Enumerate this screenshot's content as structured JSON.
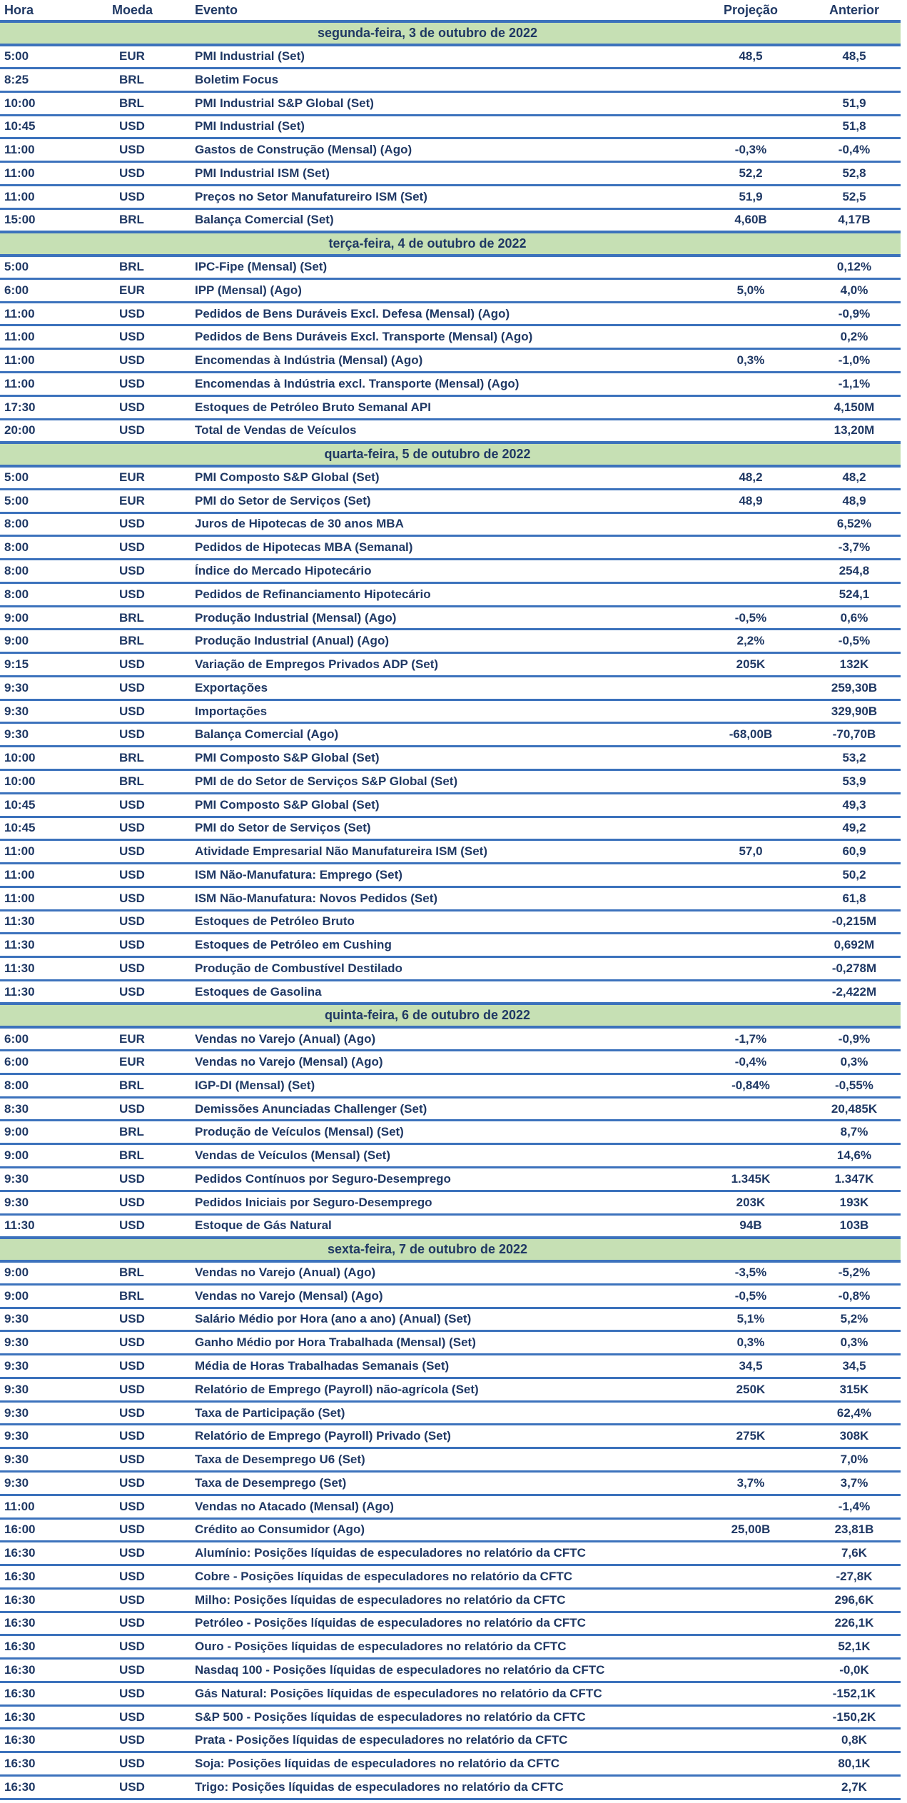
{
  "colors": {
    "day_header_background": "#c6e0b4",
    "row_border_blue": "#3c72bc",
    "text_navy": "#1f3864"
  },
  "table": {
    "columns": [
      {
        "key": "hora",
        "label": "Hora"
      },
      {
        "key": "moeda",
        "label": "Moeda"
      },
      {
        "key": "evento",
        "label": "Evento"
      },
      {
        "key": "projecao",
        "label": "Projeção"
      },
      {
        "key": "anterior",
        "label": "Anterior"
      }
    ],
    "days": [
      {
        "header": "segunda-feira, 3 de outubro de 2022",
        "rows": [
          {
            "hora": "5:00",
            "moeda": "EUR",
            "evento": "PMI Industrial (Set)",
            "projecao": "48,5",
            "anterior": "48,5"
          },
          {
            "hora": "8:25",
            "moeda": "BRL",
            "evento": "Boletim Focus",
            "projecao": "",
            "anterior": ""
          },
          {
            "hora": "10:00",
            "moeda": "BRL",
            "evento": "PMI Industrial S&P Global (Set)",
            "projecao": "",
            "anterior": "51,9"
          },
          {
            "hora": "10:45",
            "moeda": "USD",
            "evento": "PMI Industrial (Set)",
            "projecao": "",
            "anterior": "51,8"
          },
          {
            "hora": "11:00",
            "moeda": "USD",
            "evento": "Gastos de Construção (Mensal) (Ago)",
            "projecao": "-0,3%",
            "anterior": "-0,4%"
          },
          {
            "hora": "11:00",
            "moeda": "USD",
            "evento": "PMI Industrial ISM (Set)",
            "projecao": "52,2",
            "anterior": "52,8"
          },
          {
            "hora": "11:00",
            "moeda": "USD",
            "evento": "Preços no Setor Manufatureiro ISM (Set)",
            "projecao": "51,9",
            "anterior": "52,5"
          },
          {
            "hora": "15:00",
            "moeda": "BRL",
            "evento": "Balança Comercial (Set)",
            "projecao": "4,60B",
            "anterior": "4,17B"
          }
        ]
      },
      {
        "header": "terça-feira, 4 de outubro de 2022",
        "rows": [
          {
            "hora": "5:00",
            "moeda": "BRL",
            "evento": "IPC-Fipe (Mensal) (Set)",
            "projecao": "",
            "anterior": "0,12%"
          },
          {
            "hora": "6:00",
            "moeda": "EUR",
            "evento": "IPP (Mensal) (Ago)",
            "projecao": "5,0%",
            "anterior": "4,0%"
          },
          {
            "hora": "11:00",
            "moeda": "USD",
            "evento": "Pedidos de Bens Duráveis Excl. Defesa (Mensal) (Ago)",
            "projecao": "",
            "anterior": "-0,9%"
          },
          {
            "hora": "11:00",
            "moeda": "USD",
            "evento": "Pedidos de Bens Duráveis Excl. Transporte (Mensal) (Ago)",
            "projecao": "",
            "anterior": "0,2%"
          },
          {
            "hora": "11:00",
            "moeda": "USD",
            "evento": "Encomendas à Indústria (Mensal) (Ago)",
            "projecao": "0,3%",
            "anterior": "-1,0%"
          },
          {
            "hora": "11:00",
            "moeda": "USD",
            "evento": "Encomendas à Indústria excl. Transporte (Mensal) (Ago)",
            "projecao": "",
            "anterior": "-1,1%"
          },
          {
            "hora": "17:30",
            "moeda": "USD",
            "evento": "Estoques de Petróleo Bruto Semanal API",
            "projecao": "",
            "anterior": "4,150M"
          },
          {
            "hora": "20:00",
            "moeda": "USD",
            "evento": "Total de Vendas de Veículos",
            "projecao": "",
            "anterior": "13,20M"
          }
        ]
      },
      {
        "header": "quarta-feira, 5 de outubro de 2022",
        "rows": [
          {
            "hora": "5:00",
            "moeda": "EUR",
            "evento": "PMI Composto S&P Global (Set)",
            "projecao": "48,2",
            "anterior": "48,2"
          },
          {
            "hora": "5:00",
            "moeda": "EUR",
            "evento": "PMI do Setor de Serviços (Set)",
            "projecao": "48,9",
            "anterior": "48,9"
          },
          {
            "hora": "8:00",
            "moeda": "USD",
            "evento": "Juros de Hipotecas de 30 anos MBA",
            "projecao": "",
            "anterior": "6,52%"
          },
          {
            "hora": "8:00",
            "moeda": "USD",
            "evento": "Pedidos de Hipotecas MBA (Semanal)",
            "projecao": "",
            "anterior": "-3,7%"
          },
          {
            "hora": "8:00",
            "moeda": "USD",
            "evento": "Índice do Mercado Hipotecário",
            "projecao": "",
            "anterior": "254,8"
          },
          {
            "hora": "8:00",
            "moeda": "USD",
            "evento": "Pedidos de Refinanciamento Hipotecário",
            "projecao": "",
            "anterior": "524,1"
          },
          {
            "hora": "9:00",
            "moeda": "BRL",
            "evento": "Produção Industrial (Mensal) (Ago)",
            "projecao": "-0,5%",
            "anterior": "0,6%"
          },
          {
            "hora": "9:00",
            "moeda": "BRL",
            "evento": "Produção Industrial (Anual) (Ago)",
            "projecao": "2,2%",
            "anterior": "-0,5%"
          },
          {
            "hora": "9:15",
            "moeda": "USD",
            "evento": "Variação de Empregos Privados ADP (Set)",
            "projecao": "205K",
            "anterior": "132K"
          },
          {
            "hora": "9:30",
            "moeda": "USD",
            "evento": "Exportações",
            "projecao": "",
            "anterior": "259,30B"
          },
          {
            "hora": "9:30",
            "moeda": "USD",
            "evento": "Importações",
            "projecao": "",
            "anterior": "329,90B"
          },
          {
            "hora": "9:30",
            "moeda": "USD",
            "evento": "Balança Comercial (Ago)",
            "projecao": "-68,00B",
            "anterior": "-70,70B"
          },
          {
            "hora": "10:00",
            "moeda": "BRL",
            "evento": "PMI Composto S&P Global (Set)",
            "projecao": "",
            "anterior": "53,2"
          },
          {
            "hora": "10:00",
            "moeda": "BRL",
            "evento": "PMI de do Setor de Serviços S&P Global (Set)",
            "projecao": "",
            "anterior": "53,9"
          },
          {
            "hora": "10:45",
            "moeda": "USD",
            "evento": "PMI Composto S&P Global (Set)",
            "projecao": "",
            "anterior": "49,3"
          },
          {
            "hora": "10:45",
            "moeda": "USD",
            "evento": "PMI do Setor de Serviços (Set)",
            "projecao": "",
            "anterior": "49,2"
          },
          {
            "hora": "11:00",
            "moeda": "USD",
            "evento": "Atividade Empresarial Não Manufatureira ISM (Set)",
            "projecao": "57,0",
            "anterior": "60,9"
          },
          {
            "hora": "11:00",
            "moeda": "USD",
            "evento": "ISM Não-Manufatura: Emprego (Set)",
            "projecao": "",
            "anterior": "50,2"
          },
          {
            "hora": "11:00",
            "moeda": "USD",
            "evento": "ISM Não-Manufatura: Novos Pedidos (Set)",
            "projecao": "",
            "anterior": "61,8"
          },
          {
            "hora": "11:30",
            "moeda": "USD",
            "evento": "Estoques de Petróleo Bruto",
            "projecao": "",
            "anterior": "-0,215M"
          },
          {
            "hora": "11:30",
            "moeda": "USD",
            "evento": "Estoques de Petróleo em Cushing",
            "projecao": "",
            "anterior": "0,692M"
          },
          {
            "hora": "11:30",
            "moeda": "USD",
            "evento": "Produção de Combustível Destilado",
            "projecao": "",
            "anterior": "-0,278M"
          },
          {
            "hora": "11:30",
            "moeda": "USD",
            "evento": "Estoques de Gasolina",
            "projecao": "",
            "anterior": "-2,422M"
          }
        ]
      },
      {
        "header": "quinta-feira, 6 de outubro de 2022",
        "rows": [
          {
            "hora": "6:00",
            "moeda": "EUR",
            "evento": "Vendas no Varejo (Anual) (Ago)",
            "projecao": "-1,7%",
            "anterior": "-0,9%"
          },
          {
            "hora": "6:00",
            "moeda": "EUR",
            "evento": "Vendas no Varejo (Mensal) (Ago)",
            "projecao": "-0,4%",
            "anterior": "0,3%"
          },
          {
            "hora": "8:00",
            "moeda": "BRL",
            "evento": "IGP-DI (Mensal) (Set)",
            "projecao": "-0,84%",
            "anterior": "-0,55%"
          },
          {
            "hora": "8:30",
            "moeda": "USD",
            "evento": "Demissões Anunciadas Challenger (Set)",
            "projecao": "",
            "anterior": "20,485K"
          },
          {
            "hora": "9:00",
            "moeda": "BRL",
            "evento": "Produção de Veículos (Mensal) (Set)",
            "projecao": "",
            "anterior": "8,7%"
          },
          {
            "hora": "9:00",
            "moeda": "BRL",
            "evento": "Vendas de Veículos (Mensal) (Set)",
            "projecao": "",
            "anterior": "14,6%"
          },
          {
            "hora": "9:30",
            "moeda": "USD",
            "evento": "Pedidos Contínuos por Seguro-Desemprego",
            "projecao": "1.345K",
            "anterior": "1.347K"
          },
          {
            "hora": "9:30",
            "moeda": "USD",
            "evento": "Pedidos Iniciais por Seguro-Desemprego",
            "projecao": "203K",
            "anterior": "193K"
          },
          {
            "hora": "11:30",
            "moeda": "USD",
            "evento": "Estoque de Gás Natural",
            "projecao": "94B",
            "anterior": "103B"
          }
        ]
      },
      {
        "header": "sexta-feira, 7 de outubro de 2022",
        "rows": [
          {
            "hora": "9:00",
            "moeda": "BRL",
            "evento": "Vendas no Varejo (Anual) (Ago)",
            "projecao": "-3,5%",
            "anterior": "-5,2%"
          },
          {
            "hora": "9:00",
            "moeda": "BRL",
            "evento": "Vendas no Varejo (Mensal) (Ago)",
            "projecao": "-0,5%",
            "anterior": "-0,8%"
          },
          {
            "hora": "9:30",
            "moeda": "USD",
            "evento": "Salário Médio por Hora (ano a ano) (Anual) (Set)",
            "projecao": "5,1%",
            "anterior": "5,2%"
          },
          {
            "hora": "9:30",
            "moeda": "USD",
            "evento": "Ganho Médio por Hora Trabalhada (Mensal) (Set)",
            "projecao": "0,3%",
            "anterior": "0,3%"
          },
          {
            "hora": "9:30",
            "moeda": "USD",
            "evento": "Média de Horas Trabalhadas Semanais (Set)",
            "projecao": "34,5",
            "anterior": "34,5"
          },
          {
            "hora": "9:30",
            "moeda": "USD",
            "evento": "Relatório de Emprego (Payroll) não-agrícola (Set)",
            "projecao": "250K",
            "anterior": "315K"
          },
          {
            "hora": "9:30",
            "moeda": "USD",
            "evento": "Taxa de Participação (Set)",
            "projecao": "",
            "anterior": "62,4%"
          },
          {
            "hora": "9:30",
            "moeda": "USD",
            "evento": "Relatório de Emprego (Payroll) Privado (Set)",
            "projecao": "275K",
            "anterior": "308K"
          },
          {
            "hora": "9:30",
            "moeda": "USD",
            "evento": "Taxa de Desemprego U6 (Set)",
            "projecao": "",
            "anterior": "7,0%"
          },
          {
            "hora": "9:30",
            "moeda": "USD",
            "evento": "Taxa de Desemprego (Set)",
            "projecao": "3,7%",
            "anterior": "3,7%"
          },
          {
            "hora": "11:00",
            "moeda": "USD",
            "evento": "Vendas no Atacado (Mensal) (Ago)",
            "projecao": "",
            "anterior": "-1,4%"
          },
          {
            "hora": "16:00",
            "moeda": "USD",
            "evento": "Crédito ao Consumidor (Ago)",
            "projecao": "25,00B",
            "anterior": "23,81B"
          },
          {
            "hora": "16:30",
            "moeda": "USD",
            "evento": "Alumínio: Posições líquidas de especuladores no relatório da CFTC",
            "projecao": "",
            "anterior": "7,6K"
          },
          {
            "hora": "16:30",
            "moeda": "USD",
            "evento": "Cobre - Posições líquidas de especuladores no relatório da CFTC",
            "projecao": "",
            "anterior": "-27,8K"
          },
          {
            "hora": "16:30",
            "moeda": "USD",
            "evento": "Milho: Posições líquidas de especuladores no relatório da CFTC",
            "projecao": "",
            "anterior": "296,6K"
          },
          {
            "hora": "16:30",
            "moeda": "USD",
            "evento": "Petróleo - Posições líquidas de especuladores no relatório da CFTC",
            "projecao": "",
            "anterior": "226,1K"
          },
          {
            "hora": "16:30",
            "moeda": "USD",
            "evento": "Ouro - Posições líquidas de especuladores no relatório da CFTC",
            "projecao": "",
            "anterior": "52,1K"
          },
          {
            "hora": "16:30",
            "moeda": "USD",
            "evento": "Nasdaq 100 - Posições líquidas de especuladores no relatório da CFTC",
            "projecao": "",
            "anterior": "-0,0K"
          },
          {
            "hora": "16:30",
            "moeda": "USD",
            "evento": "Gás Natural: Posições líquidas de especuladores no relatório da CFTC",
            "projecao": "",
            "anterior": "-152,1K"
          },
          {
            "hora": "16:30",
            "moeda": "USD",
            "evento": "S&P 500 - Posições líquidas de especuladores no relatório da CFTC",
            "projecao": "",
            "anterior": "-150,2K"
          },
          {
            "hora": "16:30",
            "moeda": "USD",
            "evento": "Prata - Posições líquidas de especuladores no relatório da CFTC",
            "projecao": "",
            "anterior": "0,8K"
          },
          {
            "hora": "16:30",
            "moeda": "USD",
            "evento": "Soja: Posições líquidas de especuladores no relatório da CFTC",
            "projecao": "",
            "anterior": "80,1K"
          },
          {
            "hora": "16:30",
            "moeda": "USD",
            "evento": "Trigo: Posições líquidas de especuladores no relatório da CFTC",
            "projecao": "",
            "anterior": "2,7K"
          }
        ]
      }
    ]
  }
}
